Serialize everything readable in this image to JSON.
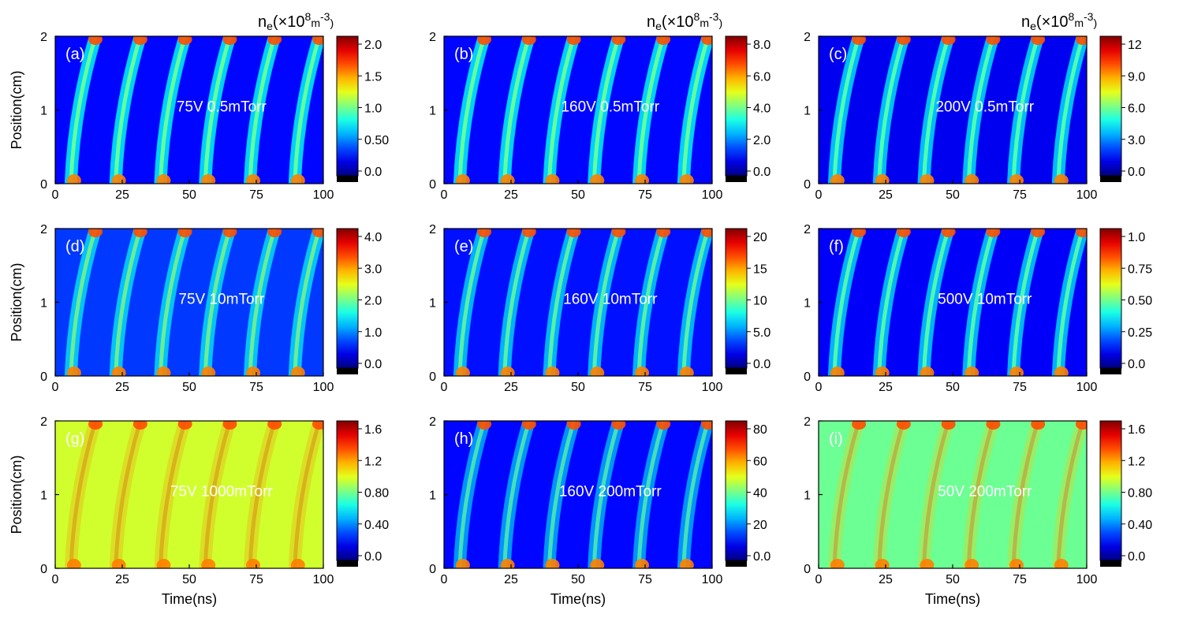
{
  "figure": {
    "unit_label": {
      "sym": "n",
      "sub": "e",
      "open": "(×10",
      "exp8": "8",
      "mid": "m",
      "expm3": "-3",
      "close": ")"
    },
    "xlabel": "Time(ns)",
    "ylabel": "Position(cm)",
    "x_ticks": [
      "0",
      "25",
      "50",
      "75",
      "100"
    ],
    "y_ticks": [
      "0",
      "1",
      "2"
    ]
  },
  "chart_data": [
    {
      "type": "heatmap",
      "panel": "(a)",
      "condition": "75V 0.5mTorr",
      "xlim": [
        0,
        100
      ],
      "ylim": [
        0,
        2
      ],
      "colorbar_ticks": [
        "2.0",
        "1.5",
        "1.0",
        "0.50",
        "0.0"
      ],
      "colorbar_range": [
        0,
        2.0
      ],
      "period_ns": 16.7,
      "phase": 1.0,
      "bg": 0.05
    },
    {
      "type": "heatmap",
      "panel": "(b)",
      "condition": "160V 0.5mTorr",
      "xlim": [
        0,
        100
      ],
      "ylim": [
        0,
        2
      ],
      "colorbar_ticks": [
        "8.0",
        "6.0",
        "4.0",
        "2.0",
        "0.0"
      ],
      "colorbar_range": [
        0,
        8.0
      ],
      "period_ns": 16.7,
      "phase": 1.0,
      "bg": 0.05
    },
    {
      "type": "heatmap",
      "panel": "(c)",
      "condition": "200V 0.5mTorr",
      "xlim": [
        0,
        100
      ],
      "ylim": [
        0,
        2
      ],
      "colorbar_ticks": [
        "12",
        "9.0",
        "6.0",
        "3.0",
        "0.0"
      ],
      "colorbar_range": [
        0,
        12
      ],
      "period_ns": 16.7,
      "phase": 1.0,
      "bg": 0.03
    },
    {
      "type": "heatmap",
      "panel": "(d)",
      "condition": "75V 10mTorr",
      "xlim": [
        0,
        100
      ],
      "ylim": [
        0,
        2
      ],
      "colorbar_ticks": [
        "4.0",
        "3.0",
        "2.0",
        "1.0",
        "0.0"
      ],
      "colorbar_range": [
        0,
        4.0
      ],
      "period_ns": 16.7,
      "phase": 0.7,
      "bg": 0.1
    },
    {
      "type": "heatmap",
      "panel": "(e)",
      "condition": "160V 10mTorr",
      "xlim": [
        0,
        100
      ],
      "ylim": [
        0,
        2
      ],
      "colorbar_ticks": [
        "20",
        "15",
        "10",
        "5.0",
        "0.0"
      ],
      "colorbar_range": [
        0,
        20
      ],
      "period_ns": 16.7,
      "phase": 0.8,
      "bg": 0.06
    },
    {
      "type": "heatmap",
      "panel": "(f)",
      "condition": "500V 10mTorr",
      "xlim": [
        0,
        100
      ],
      "ylim": [
        0,
        2
      ],
      "colorbar_ticks": [
        "1.0",
        "0.75",
        "0.50",
        "0.25",
        "0.0"
      ],
      "colorbar_range": [
        0,
        1.0
      ],
      "period_ns": 16.7,
      "phase": 0.9,
      "bg": 0.04
    },
    {
      "type": "heatmap",
      "panel": "(g)",
      "condition": "75V 1000mTorr",
      "xlim": [
        0,
        100
      ],
      "ylim": [
        0,
        2
      ],
      "colorbar_ticks": [
        "1.6",
        "1.2",
        "0.80",
        "0.40",
        "0.0"
      ],
      "colorbar_range": [
        0,
        1.6
      ],
      "period_ns": 16.7,
      "phase": 0.2,
      "bg": 0.5
    },
    {
      "type": "heatmap",
      "panel": "(h)",
      "condition": "160V 200mTorr",
      "xlim": [
        0,
        100
      ],
      "ylim": [
        0,
        2
      ],
      "colorbar_ticks": [
        "80",
        "60",
        "40",
        "20",
        "0.0"
      ],
      "colorbar_range": [
        0,
        80
      ],
      "period_ns": 16.7,
      "phase": 0.7,
      "bg": 0.05
    },
    {
      "type": "heatmap",
      "panel": "(i)",
      "condition": "50V 200mTorr",
      "xlim": [
        0,
        100
      ],
      "ylim": [
        0,
        2
      ],
      "colorbar_ticks": [
        "1.6",
        "1.2",
        "0.80",
        "0.40",
        "0.0"
      ],
      "colorbar_range": [
        0,
        1.6
      ],
      "period_ns": 16.7,
      "phase": 0.3,
      "bg": 0.4
    }
  ]
}
